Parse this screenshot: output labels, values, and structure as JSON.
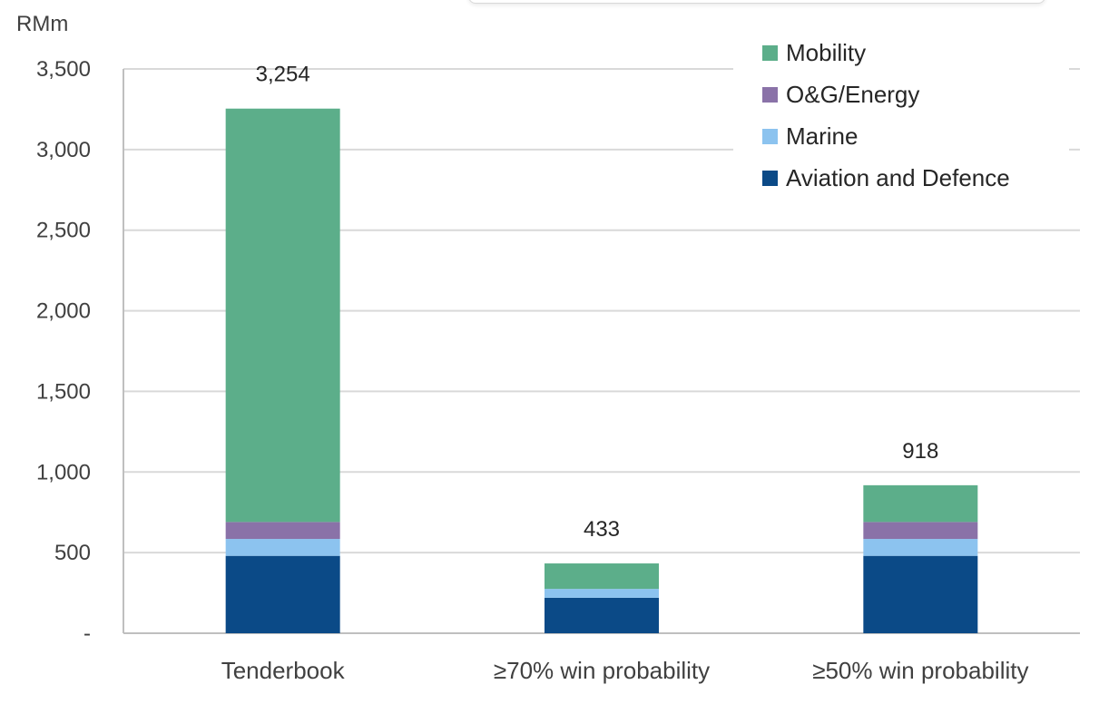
{
  "chart_data": {
    "type": "bar",
    "stacked": true,
    "unit_label": "RMm",
    "categories": [
      "Tenderbook",
      "≥70% win probability",
      "≥50% win probability"
    ],
    "series": [
      {
        "name": "Aviation and Defence",
        "color": "#0b4a87",
        "values": [
          480,
          220,
          480
        ]
      },
      {
        "name": "Marine",
        "color": "#8cc3ef",
        "values": [
          105,
          55,
          105
        ]
      },
      {
        "name": "O&G/Energy",
        "color": "#8a72a8",
        "values": [
          105,
          0,
          105
        ]
      },
      {
        "name": "Mobility",
        "color": "#5cae8a",
        "values": [
          2564,
          158,
          228
        ]
      }
    ],
    "totals": [
      "3,254",
      "433",
      "918"
    ],
    "y_ticks": [
      {
        "value": 0,
        "label": "-"
      },
      {
        "value": 500,
        "label": "500"
      },
      {
        "value": 1000,
        "label": "1,000"
      },
      {
        "value": 1500,
        "label": "1,500"
      },
      {
        "value": 2000,
        "label": "2,000"
      },
      {
        "value": 2500,
        "label": "2,500"
      },
      {
        "value": 3000,
        "label": "3,000"
      },
      {
        "value": 3500,
        "label": "3,500"
      }
    ],
    "ylim": [
      0,
      3500
    ],
    "grid": true,
    "legend_position": "top-right",
    "legend_order": [
      "Mobility",
      "O&G/Energy",
      "Marine",
      "Aviation and Defence"
    ]
  }
}
